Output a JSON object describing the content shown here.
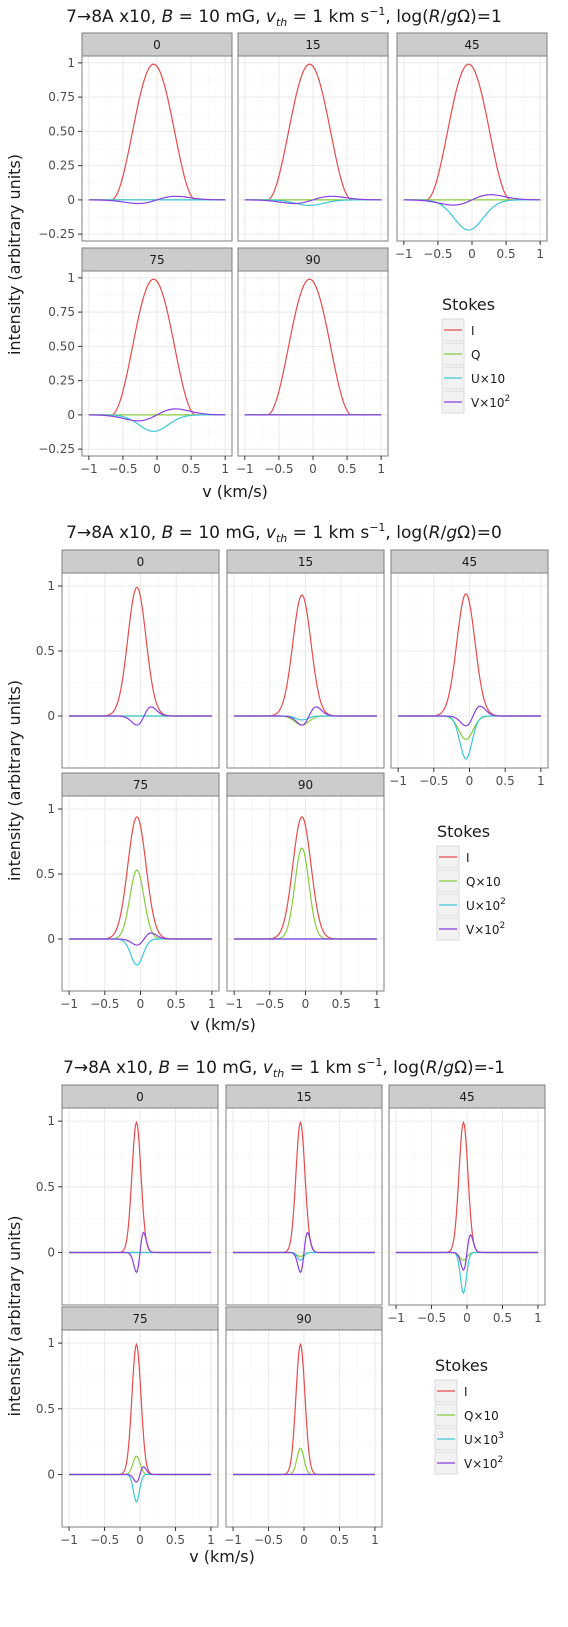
{
  "colors": {
    "I": "#e64b4b",
    "Q": "#87cc40",
    "U": "#3cc8d8",
    "V": "#8a3fe0",
    "panel_bg": "#ffffff",
    "grid_major": "#ebebeb",
    "grid_minor": "#f5f5f5",
    "strip_bg": "#cccccc",
    "border": "#7f7f7f"
  },
  "chart_data": [
    {
      "type": "line",
      "title": {
        "pre": "7→8A x10, ",
        "b": "B",
        "mid1": " = 10 mG, ",
        "v": "v",
        "sub": "th",
        "mid2": " = 1 km s",
        "sup": "−1",
        "mid3": ", log(",
        "R": "R",
        "slash": "/",
        "g": "g",
        "post": "Ω)=1"
      },
      "xlabel": "v (km/s)",
      "ylabel": "intensity (arbitrary units)",
      "xlim": [
        -1.1,
        1.1
      ],
      "ylim": [
        -0.3,
        1.05
      ],
      "xticks": [
        -1,
        -0.5,
        0,
        0.5,
        1
      ],
      "xtick_labels": [
        "−1",
        "−0.5",
        "0",
        "0.5",
        "1"
      ],
      "yticks": [
        -0.25,
        0,
        0.25,
        0.5,
        0.75,
        1
      ],
      "ytick_labels": [
        "−0.25",
        "0",
        "0.25",
        "0.50",
        "0.75",
        "1"
      ],
      "legend": {
        "title": "Stokes",
        "position": "right",
        "entries": [
          {
            "key": "I",
            "label": "I",
            "sup": ""
          },
          {
            "key": "Q",
            "label": "Q",
            "sup": ""
          },
          {
            "key": "U",
            "label": "U×10",
            "sup": ""
          },
          {
            "key": "V",
            "label": "V×10",
            "sup": "2"
          }
        ]
      },
      "line_shape": {
        "I": "hump",
        "Q": "gauss",
        "U": "gauss",
        "V": "antisym"
      },
      "center_width": {
        "I": [
          -0.05,
          0.62
        ],
        "Q": [
          -0.05,
          0.3
        ],
        "U": [
          -0.05,
          0.3
        ],
        "V": [
          0.0,
          0.55
        ]
      },
      "panels": [
        {
          "label": "0",
          "amp": {
            "I": 0.99,
            "Q": 0,
            "U": 0,
            "V": 0.045
          }
        },
        {
          "label": "15",
          "amp": {
            "I": 0.99,
            "Q": 0,
            "U": -0.04,
            "V": 0.045
          }
        },
        {
          "label": "45",
          "amp": {
            "I": 0.99,
            "Q": 0,
            "U": -0.22,
            "V": 0.065
          }
        },
        {
          "label": "75",
          "amp": {
            "I": 0.99,
            "Q": 0,
            "U": -0.12,
            "V": 0.075
          }
        },
        {
          "label": "90",
          "amp": {
            "I": 0.99,
            "Q": 0,
            "U": 0,
            "V": 0
          }
        }
      ]
    },
    {
      "type": "line",
      "title": {
        "pre": "7→8A x10, ",
        "b": "B",
        "mid1": " = 10 mG, ",
        "v": "v",
        "sub": "th",
        "mid2": " = 1 km s",
        "sup": "−1",
        "mid3": ", log(",
        "R": "R",
        "slash": "/",
        "g": "g",
        "post": "Ω)=0"
      },
      "xlabel": "v (km/s)",
      "ylabel": "intensity (arbitrary units)",
      "xlim": [
        -1.1,
        1.1
      ],
      "ylim": [
        -0.4,
        1.1
      ],
      "xticks": [
        -1,
        -0.5,
        0,
        0.5,
        1
      ],
      "xtick_labels": [
        "−1",
        "−0.5",
        "0",
        "0.5",
        "1"
      ],
      "yticks": [
        0,
        0.5,
        1
      ],
      "ytick_labels": [
        "0",
        "0.5",
        "1"
      ],
      "legend": {
        "title": "Stokes",
        "position": "right",
        "entries": [
          {
            "key": "I",
            "label": "I",
            "sup": ""
          },
          {
            "key": "Q",
            "label": "Q×10",
            "sup": ""
          },
          {
            "key": "U",
            "label": "U×10",
            "sup": "2"
          },
          {
            "key": "V",
            "label": "V×10",
            "sup": "2"
          }
        ]
      },
      "line_shape": {
        "I": "gauss",
        "Q": "gauss",
        "U": "gauss",
        "V": "antisym"
      },
      "center_width": {
        "I": [
          -0.05,
          0.18
        ],
        "Q": [
          -0.05,
          0.14
        ],
        "U": [
          -0.05,
          0.12
        ],
        "V": [
          0.05,
          0.2
        ]
      },
      "panels": [
        {
          "label": "0",
          "amp": {
            "I": 0.99,
            "Q": 0,
            "U": 0,
            "V": 0.12
          }
        },
        {
          "label": "15",
          "amp": {
            "I": 0.93,
            "Q": -0.07,
            "U": -0.03,
            "V": 0.12
          }
        },
        {
          "label": "45",
          "amp": {
            "I": 0.94,
            "Q": -0.18,
            "U": -0.33,
            "V": 0.13
          }
        },
        {
          "label": "75",
          "amp": {
            "I": 0.94,
            "Q": 0.53,
            "U": -0.2,
            "V": 0.08
          }
        },
        {
          "label": "90",
          "amp": {
            "I": 0.94,
            "Q": 0.7,
            "U": 0,
            "V": 0
          }
        }
      ]
    },
    {
      "type": "line",
      "title": {
        "pre": "7→8A x10, ",
        "b": "B",
        "mid1": " = 10 mG, ",
        "v": "v",
        "sub": "th",
        "mid2": " = 1 km s",
        "sup": "−1",
        "mid3": ", log(",
        "R": "R",
        "slash": "/",
        "g": "g",
        "post": "Ω)=-1"
      },
      "xlabel": "v (km/s)",
      "ylabel": "intensity (arbitrary units)",
      "xlim": [
        -1.1,
        1.1
      ],
      "ylim": [
        -0.4,
        1.1
      ],
      "xticks": [
        -1,
        -0.5,
        0,
        0.5,
        1
      ],
      "xtick_labels": [
        "−1",
        "−0.5",
        "0",
        "0.5",
        "1"
      ],
      "yticks": [
        0,
        0.5,
        1
      ],
      "ytick_labels": [
        "0",
        "0.5",
        "1"
      ],
      "legend": {
        "title": "Stokes",
        "position": "right",
        "entries": [
          {
            "key": "I",
            "label": "I",
            "sup": ""
          },
          {
            "key": "Q",
            "label": "Q×10",
            "sup": ""
          },
          {
            "key": "U",
            "label": "U×10",
            "sup": "3"
          },
          {
            "key": "V",
            "label": "V×10",
            "sup": "2"
          }
        ]
      },
      "line_shape": {
        "I": "gauss",
        "Q": "gauss",
        "U": "gauss",
        "V": "antisym"
      },
      "center_width": {
        "I": [
          -0.05,
          0.09
        ],
        "Q": [
          -0.05,
          0.07
        ],
        "U": [
          -0.05,
          0.06
        ],
        "V": [
          0.0,
          0.1
        ]
      },
      "panels": [
        {
          "label": "0",
          "amp": {
            "I": 0.99,
            "Q": 0,
            "U": 0,
            "V": 0.26
          }
        },
        {
          "label": "15",
          "amp": {
            "I": 0.99,
            "Q": -0.03,
            "U": -0.06,
            "V": 0.26
          }
        },
        {
          "label": "45",
          "amp": {
            "I": 0.99,
            "Q": -0.06,
            "U": -0.31,
            "V": 0.23
          }
        },
        {
          "label": "75",
          "amp": {
            "I": 0.99,
            "Q": 0.14,
            "U": -0.21,
            "V": 0.1
          }
        },
        {
          "label": "90",
          "amp": {
            "I": 0.99,
            "Q": 0.2,
            "U": 0,
            "V": 0
          }
        }
      ]
    }
  ]
}
